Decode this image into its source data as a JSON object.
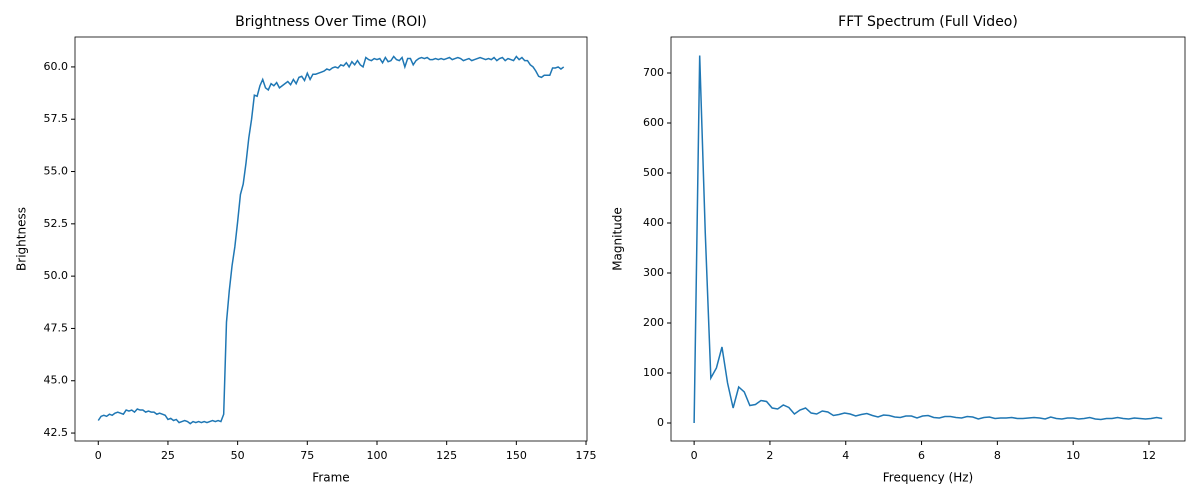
{
  "chart_data": [
    {
      "type": "line",
      "title": "Brightness Over Time (ROI)",
      "xlabel": "Frame",
      "ylabel": "Brightness",
      "color": "#1f77b4",
      "x": [
        0,
        1,
        2,
        3,
        4,
        5,
        6,
        7,
        8,
        9,
        10,
        11,
        12,
        13,
        14,
        15,
        16,
        17,
        18,
        19,
        20,
        21,
        22,
        23,
        24,
        25,
        26,
        27,
        28,
        29,
        30,
        31,
        32,
        33,
        34,
        35,
        36,
        37,
        38,
        39,
        40,
        41,
        42,
        43,
        44,
        45,
        46,
        47,
        48,
        49,
        50,
        51,
        52,
        53,
        54,
        55,
        56,
        57,
        58,
        59,
        60,
        61,
        62,
        63,
        64,
        65,
        66,
        67,
        68,
        69,
        70,
        71,
        72,
        73,
        74,
        75,
        76,
        77,
        78,
        79,
        80,
        81,
        82,
        83,
        84,
        85,
        86,
        87,
        88,
        89,
        90,
        91,
        92,
        93,
        94,
        95,
        96,
        97,
        98,
        99,
        100,
        101,
        102,
        103,
        104,
        105,
        106,
        107,
        108,
        109,
        110,
        111,
        112,
        113,
        114,
        115,
        116,
        117,
        118,
        119,
        120,
        121,
        122,
        123,
        124,
        125,
        126,
        127,
        128,
        129,
        130,
        131,
        132,
        133,
        134,
        135,
        136,
        137,
        138,
        139,
        140,
        141,
        142,
        143,
        144,
        145,
        146,
        147,
        148,
        149,
        150,
        151,
        152,
        153,
        154,
        155,
        156,
        157,
        158,
        159,
        160,
        161,
        162,
        163,
        164,
        165,
        166,
        167
      ],
      "values": [
        43.1,
        43.3,
        43.35,
        43.3,
        43.4,
        43.35,
        43.45,
        43.5,
        43.45,
        43.4,
        43.6,
        43.55,
        43.6,
        43.5,
        43.65,
        43.6,
        43.6,
        43.5,
        43.55,
        43.5,
        43.5,
        43.4,
        43.45,
        43.4,
        43.35,
        43.15,
        43.2,
        43.1,
        43.15,
        43.0,
        43.05,
        43.1,
        43.05,
        42.95,
        43.05,
        43.0,
        43.05,
        43.0,
        43.05,
        43.0,
        43.05,
        43.1,
        43.05,
        43.1,
        43.05,
        43.4,
        47.8,
        49.3,
        50.5,
        51.4,
        52.6,
        53.9,
        54.4,
        55.4,
        56.6,
        57.5,
        58.65,
        58.6,
        59.1,
        59.4,
        59.0,
        58.9,
        59.2,
        59.1,
        59.25,
        59.0,
        59.1,
        59.2,
        59.3,
        59.15,
        59.4,
        59.2,
        59.5,
        59.55,
        59.35,
        59.7,
        59.4,
        59.65,
        59.65,
        59.7,
        59.75,
        59.8,
        59.9,
        59.85,
        59.95,
        60.0,
        59.95,
        60.1,
        60.05,
        60.2,
        60.0,
        60.25,
        60.1,
        60.3,
        60.1,
        60.0,
        60.45,
        60.35,
        60.3,
        60.4,
        60.35,
        60.4,
        60.2,
        60.45,
        60.25,
        60.3,
        60.5,
        60.35,
        60.3,
        60.45,
        60.0,
        60.4,
        60.4,
        60.1,
        60.3,
        60.4,
        60.45,
        60.4,
        60.45,
        60.35,
        60.35,
        60.4,
        60.35,
        60.4,
        60.35,
        60.4,
        60.45,
        60.35,
        60.4,
        60.45,
        60.4,
        60.3,
        60.35,
        60.4,
        60.3,
        60.35,
        60.4,
        60.45,
        60.4,
        60.35,
        60.4,
        60.35,
        60.45,
        60.3,
        60.4,
        60.45,
        60.3,
        60.4,
        60.35,
        60.3,
        60.5,
        60.35,
        60.45,
        60.3,
        60.3,
        60.1,
        60.0,
        59.8,
        59.55,
        59.5,
        59.6,
        59.6,
        59.6,
        59.95,
        59.95,
        60.0,
        59.9,
        60.0
      ],
      "xlim": [
        -8.35,
        175.35
      ],
      "ylim": [
        42.12,
        61.43
      ],
      "xticks": [
        0,
        25,
        50,
        75,
        100,
        125,
        150,
        175
      ],
      "yticks": [
        42.5,
        {
          "value": 45,
          "label": "45.0"
        },
        47.5,
        {
          "value": 50,
          "label": "50.0"
        },
        52.5,
        {
          "value": 55,
          "label": "55.0"
        },
        57.5,
        {
          "value": 60,
          "label": "60.0"
        }
      ]
    },
    {
      "type": "line",
      "title": "FFT Spectrum (Full Video)",
      "xlabel": "Frequency (Hz)",
      "ylabel": "Magnitude",
      "color": "#1f77b4",
      "x": [
        0,
        0.147,
        0.294,
        0.441,
        0.588,
        0.735,
        0.882,
        1.029,
        1.176,
        1.323,
        1.47,
        1.617,
        1.764,
        1.911,
        2.058,
        2.205,
        2.352,
        2.499,
        2.646,
        2.793,
        2.94,
        3.087,
        3.234,
        3.381,
        3.528,
        3.675,
        3.822,
        3.969,
        4.116,
        4.263,
        4.41,
        4.557,
        4.704,
        4.851,
        4.998,
        5.145,
        5.292,
        5.439,
        5.586,
        5.733,
        5.88,
        6.027,
        6.174,
        6.321,
        6.468,
        6.615,
        6.762,
        6.909,
        7.056,
        7.203,
        7.35,
        7.497,
        7.644,
        7.791,
        7.938,
        8.085,
        8.232,
        8.379,
        8.526,
        8.673,
        8.82,
        8.967,
        9.114,
        9.261,
        9.408,
        9.555,
        9.702,
        9.849,
        9.996,
        10.143,
        10.29,
        10.437,
        10.584,
        10.731,
        10.878,
        11.025,
        11.172,
        11.319,
        11.466,
        11.613,
        11.76,
        11.907,
        12.054,
        12.201,
        12.348
      ],
      "values": [
        0,
        735,
        380,
        90,
        110,
        152,
        80,
        30,
        72,
        62,
        35,
        37,
        45,
        43,
        30,
        28,
        36,
        31,
        18,
        26,
        30,
        20,
        18,
        24,
        22,
        15,
        17,
        20,
        18,
        14,
        17,
        19,
        15,
        12,
        16,
        15,
        12,
        11,
        14,
        14,
        10,
        14,
        15,
        11,
        10,
        13,
        13,
        11,
        10,
        13,
        12,
        8,
        11,
        12,
        9,
        10,
        10,
        11,
        9,
        9,
        10,
        11,
        10,
        8,
        12,
        9,
        8,
        10,
        10,
        8,
        9,
        11,
        8,
        7,
        9,
        9,
        11,
        9,
        8,
        10,
        9,
        8,
        9,
        11,
        9
      ],
      "xlim": [
        -0.61,
        12.95
      ],
      "ylim": [
        -36,
        772
      ],
      "xticks": [
        0,
        2,
        4,
        6,
        8,
        10,
        12
      ],
      "yticks": [
        0,
        100,
        200,
        300,
        400,
        500,
        600,
        700
      ]
    }
  ]
}
